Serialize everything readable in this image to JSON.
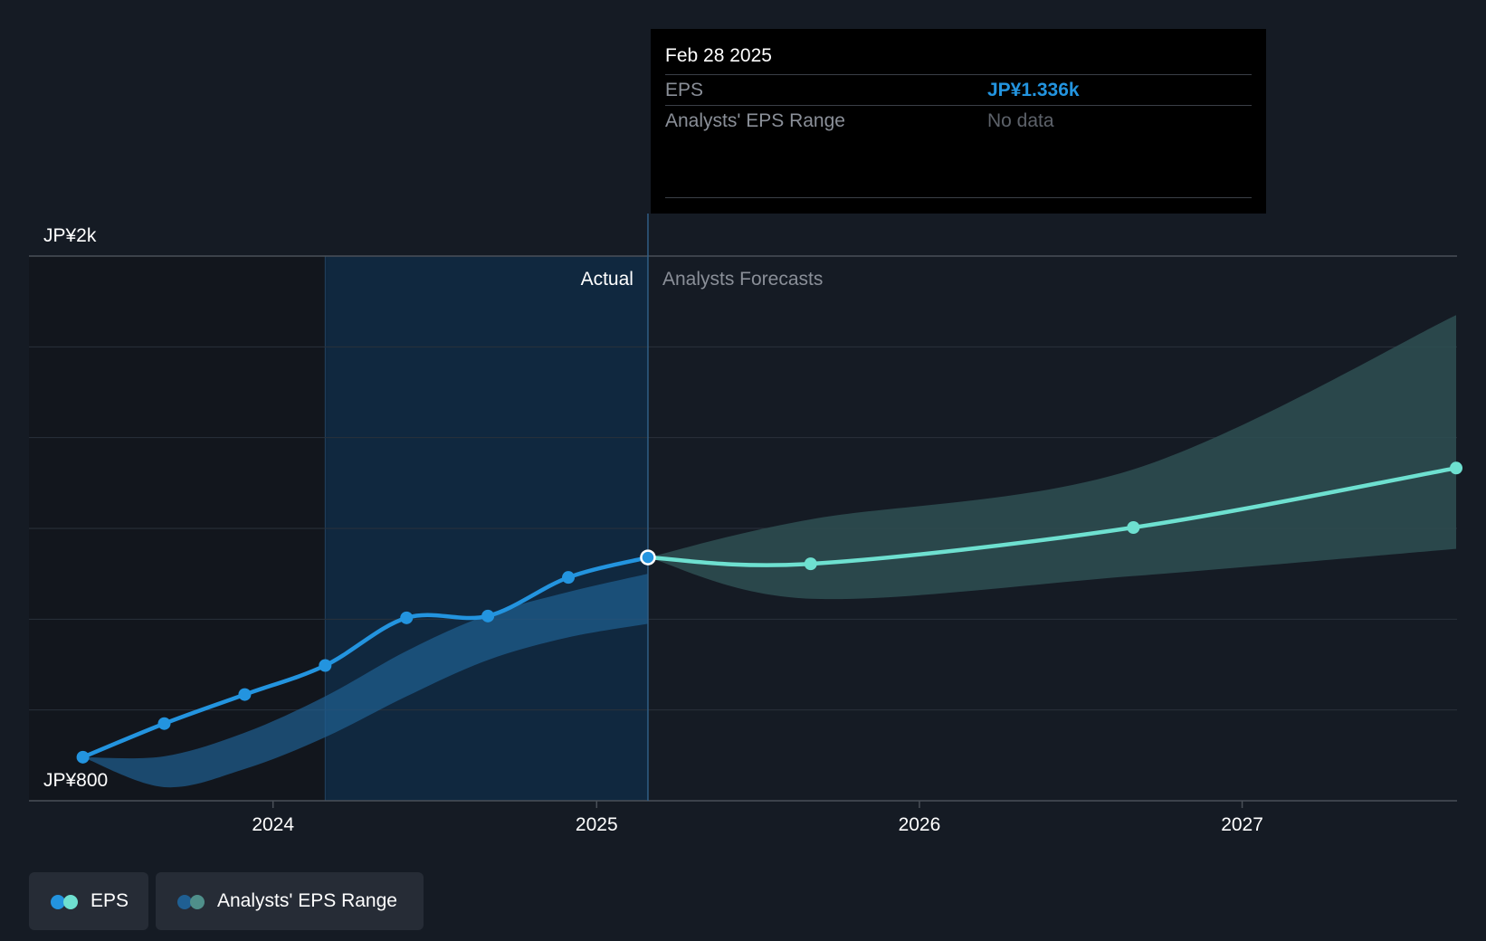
{
  "colors": {
    "background": "#151b24",
    "actual_line": "#2394df",
    "forecast_line": "#6ee0d0",
    "actual_range": "#1f5f92",
    "forecast_range": "#2e4f52",
    "actual_shade": "#0f2a44"
  },
  "tooltip": {
    "date": "Feb 28 2025",
    "eps_label": "EPS",
    "eps_value": "JP¥1.336k",
    "range_label": "Analysts' EPS Range",
    "range_value": "No data"
  },
  "sections": {
    "actual": "Actual",
    "forecast": "Analysts Forecasts"
  },
  "legend": {
    "eps": "EPS",
    "range": "Analysts' EPS Range"
  },
  "chart_data": {
    "type": "line",
    "ylim": [
      800,
      2000
    ],
    "y_tick_labels": [
      {
        "value": 2000,
        "label": "JP¥2k"
      },
      {
        "value": 800,
        "label": "JP¥800"
      }
    ],
    "y_gridlines": [
      1800,
      1600,
      1400,
      1200,
      1000
    ],
    "x_ticks": [
      {
        "value": "2024-01-01",
        "label": "2024"
      },
      {
        "value": "2025-01-01",
        "label": "2025"
      },
      {
        "value": "2026-01-01",
        "label": "2026"
      },
      {
        "value": "2027-01-01",
        "label": "2027"
      }
    ],
    "xlim": [
      "2023-03-31",
      "2027-09-01"
    ],
    "actual_region_start": "2024-02-29",
    "actual_forecast_divider": "2025-02-28",
    "series": [
      {
        "name": "EPS",
        "kind": "actual",
        "points": [
          {
            "x": "2023-05-31",
            "y": 896
          },
          {
            "x": "2023-08-31",
            "y": 970
          },
          {
            "x": "2023-11-30",
            "y": 1034
          },
          {
            "x": "2024-02-29",
            "y": 1098
          },
          {
            "x": "2024-05-31",
            "y": 1203
          },
          {
            "x": "2024-08-31",
            "y": 1207
          },
          {
            "x": "2024-11-30",
            "y": 1292
          },
          {
            "x": "2025-02-28",
            "y": 1336
          }
        ]
      },
      {
        "name": "EPS",
        "kind": "forecast",
        "points": [
          {
            "x": "2025-02-28",
            "y": 1336
          },
          {
            "x": "2025-08-31",
            "y": 1322
          },
          {
            "x": "2026-08-31",
            "y": 1402
          },
          {
            "x": "2027-08-31",
            "y": 1533
          }
        ]
      }
    ],
    "ranges": [
      {
        "name": "Analysts' EPS Range",
        "kind": "actual",
        "points": [
          {
            "x": "2023-05-31",
            "high": 896,
            "low": 896
          },
          {
            "x": "2023-08-31",
            "high": 898,
            "low": 830
          },
          {
            "x": "2023-11-30",
            "high": 950,
            "low": 870
          },
          {
            "x": "2024-02-29",
            "high": 1030,
            "low": 940
          },
          {
            "x": "2024-05-31",
            "high": 1130,
            "low": 1030
          },
          {
            "x": "2024-08-31",
            "high": 1210,
            "low": 1110
          },
          {
            "x": "2024-11-30",
            "high": 1260,
            "low": 1160
          },
          {
            "x": "2025-02-28",
            "high": 1300,
            "low": 1190
          }
        ]
      },
      {
        "name": "Analysts' EPS Range",
        "kind": "forecast",
        "points": [
          {
            "x": "2025-02-28",
            "high": 1336,
            "low": 1336
          },
          {
            "x": "2025-08-31",
            "high": 1420,
            "low": 1245
          },
          {
            "x": "2026-08-31",
            "high": 1530,
            "low": 1295
          },
          {
            "x": "2027-08-31",
            "high": 1870,
            "low": 1355
          }
        ]
      }
    ]
  }
}
